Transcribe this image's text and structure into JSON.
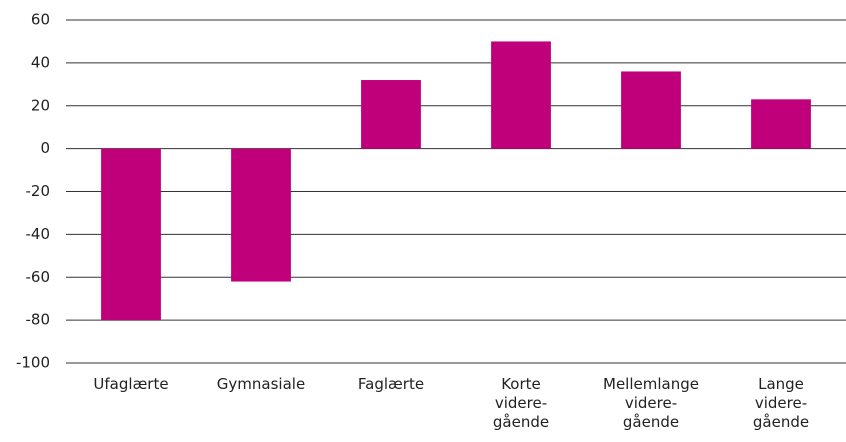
{
  "chart_data": {
    "type": "bar",
    "categories": [
      "Ufaglærte",
      "Gymnasiale",
      "Faglærte",
      "Korte\nvidere-\ngående",
      "Mellemlange\nvidere-\ngående",
      "Lange\nvidere-\ngående"
    ],
    "values": [
      -80,
      -62,
      32,
      50,
      36,
      23
    ],
    "color": "#c0007a",
    "ylim": [
      -100,
      60
    ],
    "yticks": [
      -100,
      -80,
      -60,
      -40,
      -20,
      0,
      20,
      40,
      60
    ],
    "grid": true
  }
}
